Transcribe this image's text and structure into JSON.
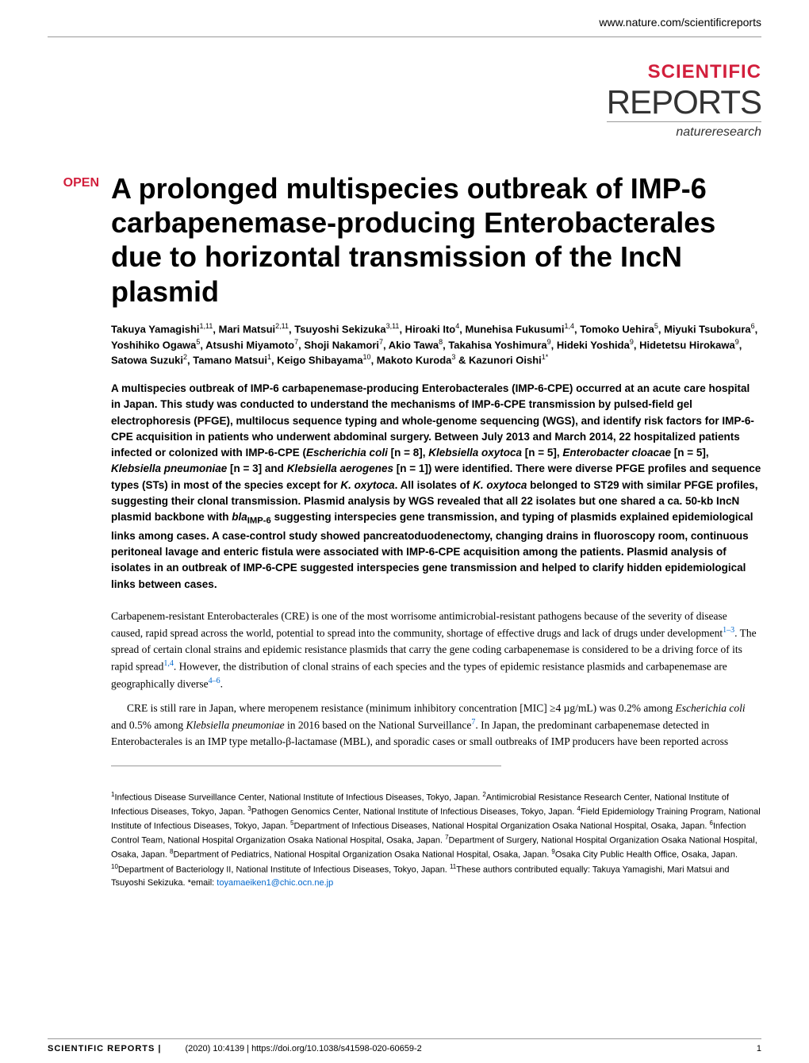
{
  "header": {
    "url": "www.nature.com/scientificreports"
  },
  "journal": {
    "scientific": "SCIENTIFIC",
    "reports": "REPORTS",
    "nature": "natureresearch"
  },
  "open_label": "OPEN",
  "title": "A prolonged multispecies outbreak of IMP-6 carbapenemase-producing Enterobacterales due to horizontal transmission of the IncN plasmid",
  "authors_html": "Takuya Yamagishi<sup>1,11</sup>, Mari Matsui<sup>2,11</sup>, Tsuyoshi Sekizuka<sup>3,11</sup>, Hiroaki Ito<sup>4</sup>, Munehisa Fukusumi<sup>1,4</sup>, Tomoko Uehira<sup>5</sup>, Miyuki Tsubokura<sup>6</sup>, Yoshihiko Ogawa<sup>5</sup>, Atsushi Miyamoto<sup>7</sup>, Shoji Nakamori<sup>7</sup>, Akio Tawa<sup>8</sup>, Takahisa Yoshimura<sup>9</sup>, Hideki Yoshida<sup>9</sup>, Hidetetsu Hirokawa<sup>9</sup>, Satowa Suzuki<sup>2</sup>, Tamano Matsui<sup>1</sup>, Keigo Shibayama<sup>10</sup>, Makoto Kuroda<sup>3</sup> & Kazunori Oishi<sup>1*</sup>",
  "abstract_html": "A multispecies outbreak of IMP-6 carbapenemase-producing Enterobacterales (IMP-6-CPE) occurred at an acute care hospital in Japan. This study was conducted to understand the mechanisms of IMP-6-CPE transmission by pulsed-field gel electrophoresis (PFGE), multilocus sequence typing and whole-genome sequencing (WGS), and identify risk factors for IMP-6-CPE acquisition in patients who underwent abdominal surgery. Between July 2013 and March 2014, 22 hospitalized patients infected or colonized with IMP-6-CPE (<em>Escherichia coli</em> [n = 8], <em>Klebsiella oxytoca</em> [n = 5], <em>Enterobacter cloacae</em> [n = 5], <em>Klebsiella pneumoniae</em> [n = 3] and <em>Klebsiella aerogenes</em> [n = 1]) were identified. There were diverse PFGE profiles and sequence types (STs) in most of the species except for <em>K. oxytoca</em>. All isolates of <em>K. oxytoca</em> belonged to ST29 with similar PFGE profiles, suggesting their clonal transmission. Plasmid analysis by WGS revealed that all 22 isolates but one shared a ca. 50-kb IncN plasmid backbone with <em>bla</em><sub>IMP-6</sub> suggesting interspecies gene transmission, and typing of plasmids explained epidemiological links among cases. A case-control study showed pancreatoduodenectomy, changing drains in fluoroscopy room, continuous peritoneal lavage and enteric fistula were associated with IMP-6-CPE acquisition among the patients. Plasmid analysis of isolates in an outbreak of IMP-6-CPE suggested interspecies gene transmission and helped to clarify hidden epidemiological links between cases.",
  "body_para1_html": "Carbapenem-resistant Enterobacterales (CRE) is one of the most worrisome antimicrobial-resistant pathogens because of the severity of disease caused, rapid spread across the world, potential to spread into the community, shortage of effective drugs and lack of drugs under development<sup>1–3</sup>. The spread of certain clonal strains and epidemic resistance plasmids that carry the gene coding carbapenemase is considered to be a driving force of its rapid spread<sup>1,4</sup>. However, the distribution of clonal strains of each species and the types of epidemic resistance plasmids and carbapenemase are geographically diverse<sup>4–6</sup>.",
  "body_para2_html": "CRE is still rare in Japan, where meropenem resistance (minimum inhibitory concentration [MIC] ≥4 µg/mL) was 0.2% among <em>Escherichia coli</em> and 0.5% among <em>Klebsiella pneumoniae</em> in 2016 based on the National Surveillance<sup>7</sup>. In Japan, the predominant carbapenemase detected in Enterobacterales is an IMP type metallo-β-lactamase (MBL), and sporadic cases or small outbreaks of IMP producers have been reported across",
  "affiliations_html": "<sup>1</sup>Infectious Disease Surveillance Center, National Institute of Infectious Diseases, Tokyo, Japan. <sup>2</sup>Antimicrobial Resistance Research Center, National Institute of Infectious Diseases, Tokyo, Japan. <sup>3</sup>Pathogen Genomics Center, National Institute of Infectious Diseases, Tokyo, Japan. <sup>4</sup>Field Epidemiology Training Program, National Institute of Infectious Diseases, Tokyo, Japan. <sup>5</sup>Department of Infectious Diseases, National Hospital Organization Osaka National Hospital, Osaka, Japan. <sup>6</sup>Infection Control Team, National Hospital Organization Osaka National Hospital, Osaka, Japan. <sup>7</sup>Department of Surgery, National Hospital Organization Osaka National Hospital, Osaka, Japan. <sup>8</sup>Department of Pediatrics, National Hospital Organization Osaka National Hospital, Osaka, Japan. <sup>9</sup>Osaka City Public Health Office, Osaka, Japan. <sup>10</sup>Department of Bacteriology II, National Institute of Infectious Diseases, Tokyo, Japan. <sup>11</sup>These authors contributed equally: Takuya Yamagishi, Mari Matsui and Tsuyoshi Sekizuka. *email: <span class=\"email-link\">toyamaeiken1@chic.ocn.ne.jp</span>",
  "footer": {
    "journal": "SCIENTIFIC REPORTS |",
    "citation": "(2020) 10:4139 | https://doi.org/10.1038/s41598-020-60659-2",
    "page": "1"
  },
  "colors": {
    "accent_red": "#d21f3c",
    "link_blue": "#0066cc",
    "rule_gray": "#999999",
    "text_black": "#000000",
    "background": "#ffffff"
  }
}
